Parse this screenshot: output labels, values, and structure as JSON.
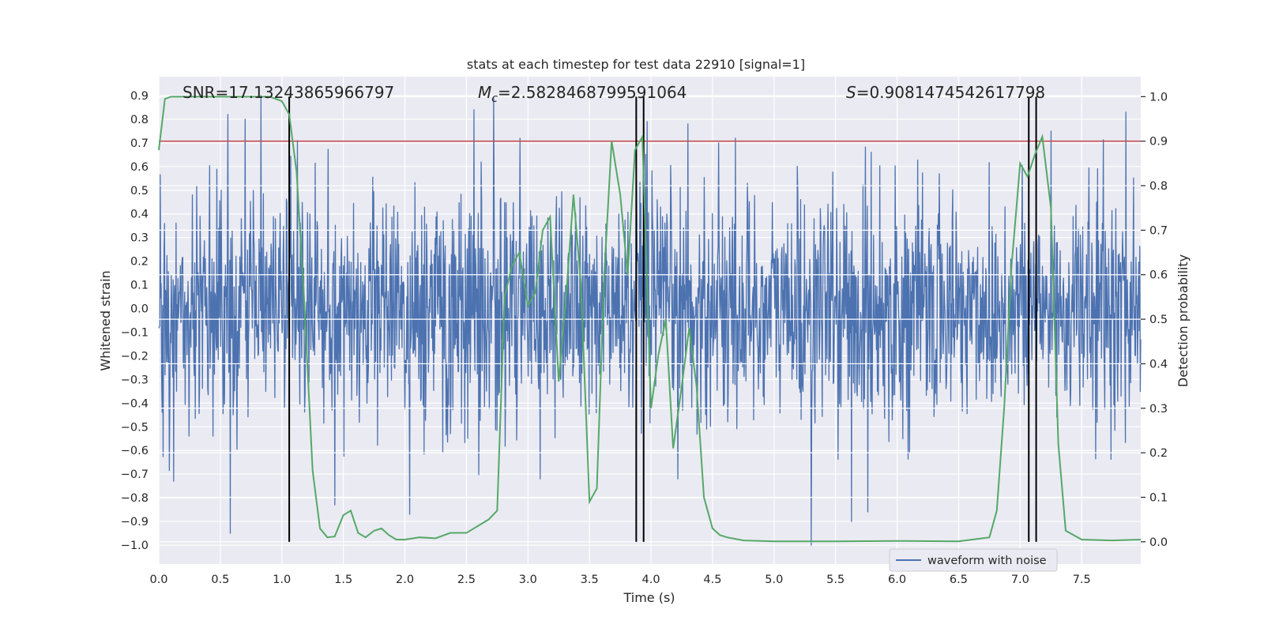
{
  "chart_data": {
    "type": "line",
    "title": "stats at each timestep for test data 22910 [signal=1]",
    "xlabel": "Time (s)",
    "ylabel_left": "Whitened strain",
    "ylabel_right": "Detection probability",
    "xlim": [
      0.0,
      7.98
    ],
    "ylim_left": [
      -1.08,
      0.98
    ],
    "ylim_right": [
      -0.05,
      1.045
    ],
    "x_ticks": [
      0.0,
      0.5,
      1.0,
      1.5,
      2.0,
      2.5,
      3.0,
      3.5,
      4.0,
      4.5,
      5.0,
      5.5,
      6.0,
      6.5,
      7.0,
      7.5
    ],
    "x_tick_labels": [
      "0.0",
      "0.5",
      "1.0",
      "1.5",
      "2.0",
      "2.5",
      "3.0",
      "3.5",
      "4.0",
      "4.5",
      "5.0",
      "5.5",
      "6.0",
      "6.5",
      "7.0",
      "7.5"
    ],
    "y_left_ticks": [
      0.9,
      0.8,
      0.7,
      0.6,
      0.5,
      0.4,
      0.3,
      0.2,
      0.1,
      0.0,
      -0.1,
      -0.2,
      -0.3,
      -0.4,
      -0.5,
      -0.6,
      -0.7,
      -0.8,
      -0.9,
      -1.0
    ],
    "y_left_tick_labels": [
      "0.9",
      "0.8",
      "0.7",
      "0.6",
      "0.5",
      "0.4",
      "0.3",
      "0.2",
      "0.1",
      "0.0",
      "−0.1",
      "−0.2",
      "−0.3",
      "−0.4",
      "−0.5",
      "−0.6",
      "−0.7",
      "−0.8",
      "−0.9",
      "−1.0"
    ],
    "y_right_ticks": [
      1.0,
      0.9,
      0.8,
      0.7,
      0.6,
      0.5,
      0.4,
      0.3,
      0.2,
      0.1,
      0.0
    ],
    "y_right_tick_labels": [
      "1.0",
      "0.9",
      "0.8",
      "0.7",
      "0.6",
      "0.5",
      "0.4",
      "0.3",
      "0.2",
      "0.1",
      "0.0"
    ],
    "annotations": {
      "snr": "SNR=17.13243865966797",
      "mc_symbol": "M",
      "mc_sub": "c",
      "mc_value": "=2.5828468799591064",
      "s_symbol": "S",
      "s_value": "=0.9081474542617798"
    },
    "legend": {
      "label": "waveform with noise",
      "location": "lower right"
    },
    "threshold": {
      "value": 0.9,
      "axis": "right",
      "color": "#c44e52"
    },
    "vertical_markers": [
      1.06,
      3.88,
      3.94,
      7.07,
      7.13
    ],
    "waveform": {
      "name": "waveform with noise",
      "color": "#4c72b0",
      "t_start": 0.0,
      "t_end": 7.98,
      "n_samples": 2048,
      "std": 0.24,
      "spikes": [
        {
          "t": 0.56,
          "y": 0.82
        },
        {
          "t": 0.83,
          "y": 0.9
        },
        {
          "t": 0.7,
          "y": 0.8
        },
        {
          "t": 0.58,
          "y": -0.95
        },
        {
          "t": 0.12,
          "y": -0.73
        },
        {
          "t": 2.56,
          "y": 0.84
        },
        {
          "t": 2.72,
          "y": 0.89
        },
        {
          "t": 2.04,
          "y": -0.87
        },
        {
          "t": 3.97,
          "y": 0.79
        },
        {
          "t": 4.3,
          "y": 0.78
        },
        {
          "t": 4.55,
          "y": 0.7
        },
        {
          "t": 5.3,
          "y": -1.0
        },
        {
          "t": 5.63,
          "y": -0.9
        },
        {
          "t": 5.76,
          "y": -0.86
        },
        {
          "t": 7.86,
          "y": 0.83
        },
        {
          "t": 7.25,
          "y": 0.75
        },
        {
          "t": 1.43,
          "y": -0.83
        }
      ]
    },
    "detection_probability": {
      "name": "detection probability",
      "color": "#55a868",
      "axis": "right",
      "x": [
        0.0,
        0.05,
        0.1,
        0.2,
        0.3,
        0.4,
        0.5,
        0.6,
        0.7,
        0.8,
        0.9,
        1.0,
        1.06,
        1.12,
        1.18,
        1.25,
        1.31,
        1.37,
        1.43,
        1.5,
        1.56,
        1.62,
        1.68,
        1.75,
        1.81,
        1.87,
        1.93,
        2.0,
        2.12,
        2.25,
        2.37,
        2.5,
        2.62,
        2.68,
        2.75,
        2.81,
        2.87,
        2.93,
        3.0,
        3.06,
        3.12,
        3.18,
        3.25,
        3.31,
        3.37,
        3.43,
        3.5,
        3.56,
        3.62,
        3.68,
        3.75,
        3.81,
        3.87,
        3.93,
        4.0,
        4.06,
        4.12,
        4.18,
        4.25,
        4.31,
        4.37,
        4.43,
        4.5,
        4.56,
        4.62,
        4.75,
        5.0,
        5.5,
        6.0,
        6.5,
        6.75,
        6.81,
        6.87,
        6.93,
        7.0,
        7.06,
        7.12,
        7.18,
        7.25,
        7.31,
        7.37,
        7.5,
        7.75,
        7.98
      ],
      "values": [
        0.88,
        0.995,
        1.0,
        1.0,
        1.0,
        1.0,
        1.0,
        1.0,
        1.0,
        1.0,
        1.0,
        0.99,
        0.96,
        0.83,
        0.55,
        0.16,
        0.03,
        0.01,
        0.012,
        0.06,
        0.07,
        0.02,
        0.01,
        0.025,
        0.03,
        0.015,
        0.005,
        0.005,
        0.01,
        0.008,
        0.02,
        0.02,
        0.04,
        0.05,
        0.07,
        0.55,
        0.62,
        0.65,
        0.53,
        0.56,
        0.7,
        0.73,
        0.36,
        0.55,
        0.78,
        0.58,
        0.09,
        0.12,
        0.6,
        0.9,
        0.78,
        0.6,
        0.88,
        0.91,
        0.3,
        0.42,
        0.5,
        0.21,
        0.35,
        0.48,
        0.35,
        0.1,
        0.03,
        0.015,
        0.01,
        0.003,
        0.001,
        0.001,
        0.002,
        0.001,
        0.01,
        0.07,
        0.3,
        0.62,
        0.85,
        0.82,
        0.87,
        0.91,
        0.75,
        0.22,
        0.025,
        0.005,
        0.003,
        0.005
      ]
    }
  }
}
